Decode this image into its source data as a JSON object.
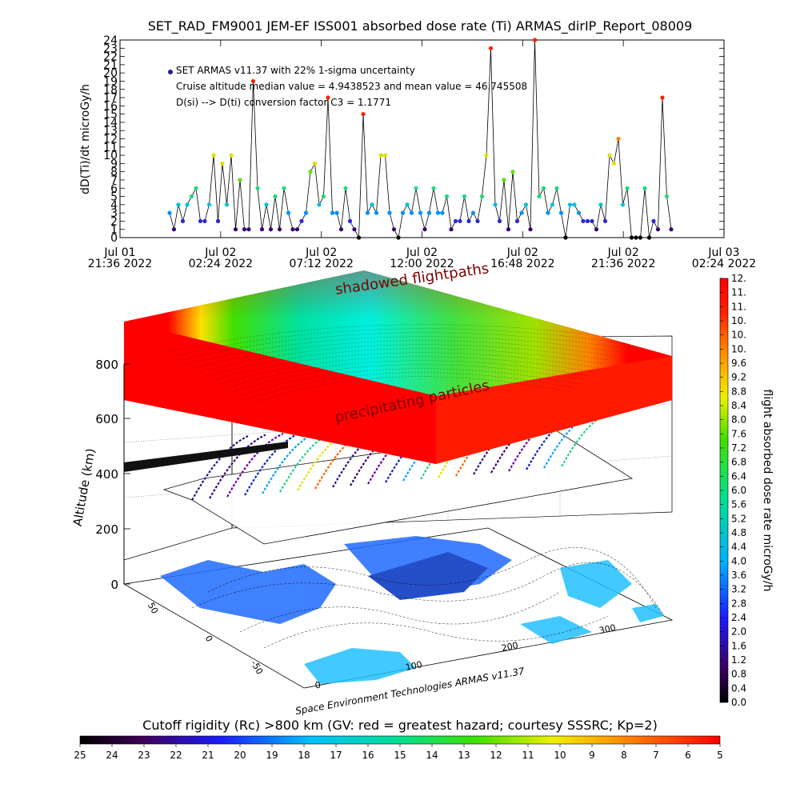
{
  "chart_data": [
    {
      "type": "scatter",
      "title": "SET_RAD_FM9001  JEM-EF ISS001 absorbed dose rate (Ti) ARMAS_dirIP_Report_08009",
      "ylabel": "dD(Ti)/dt microGy/h",
      "ylim": [
        0,
        24
      ],
      "yticks": [
        "0",
        "1",
        "2",
        "3",
        "4",
        "5",
        "6",
        "7",
        "8",
        "9",
        "10",
        "11",
        "12",
        "13",
        "14",
        "15",
        "16",
        "17",
        "18",
        "19",
        "20",
        "21",
        "22",
        "23",
        "24"
      ],
      "xticks": [
        {
          "line1": "Jul 01",
          "line2": "21:36 2022"
        },
        {
          "line1": "Jul 02",
          "line2": "02:24 2022"
        },
        {
          "line1": "Jul 02",
          "line2": "07:12 2022"
        },
        {
          "line1": "Jul 02",
          "line2": "12:00 2022"
        },
        {
          "line1": "Jul 02",
          "line2": "16:48 2022"
        },
        {
          "line1": "Jul 02",
          "line2": "21:36 2022"
        },
        {
          "line1": "Jul 03",
          "line2": "02:24 2022"
        }
      ],
      "annotations": [
        "SET ARMAS v11.37 with 22% 1-sigma uncertainty",
        "Cruise altitude median value = 4.9438523 and mean value = 46.745508",
        "D(si) --> D(ti) conversion factor C3 = 1.1771"
      ],
      "median": 4.9438523,
      "mean": 46.745508,
      "conversion_factor": 1.1771
    },
    {
      "type": "3d-surface",
      "zlabel": "Altitude (km)",
      "zticks": [
        "0",
        "200",
        "400",
        "600",
        "800"
      ],
      "lat_ticks": [
        "50",
        "0",
        "-50"
      ],
      "lon_ticks": [
        "0",
        "100",
        "200",
        "300"
      ],
      "layer_labels": [
        "shadowed flightpaths",
        "precipitating particles"
      ],
      "credit": "Space Environment Technologies ARMAS v11.37"
    },
    {
      "type": "colorbar",
      "label": "flight absorbed dose rate microGy/h",
      "ticks": [
        "0.0",
        "0.4",
        "0.8",
        "1.2",
        "1.6",
        "2.0",
        "2.4",
        "2.8",
        "3.2",
        "3.6",
        "4.0",
        "4.4",
        "4.8",
        "5.2",
        "5.6",
        "6.0",
        "6.4",
        "6.8",
        "7.2",
        "7.6",
        "8.0",
        "8.4",
        "8.8",
        "9.2",
        "9.6",
        "10.",
        "10.",
        "10.",
        "11.",
        "11.",
        "12."
      ]
    },
    {
      "type": "colorbar",
      "title": "Cutoff rigidity (Rc) >800 km (GV: red = greatest hazard; courtesy SSSRC; Kp=2)",
      "ticks": [
        "25",
        "24",
        "23",
        "22",
        "21",
        "20",
        "19",
        "18",
        "17",
        "16",
        "15",
        "14",
        "13",
        "12",
        "11",
        "10",
        "9",
        "8",
        "7",
        "6",
        "5"
      ]
    }
  ]
}
